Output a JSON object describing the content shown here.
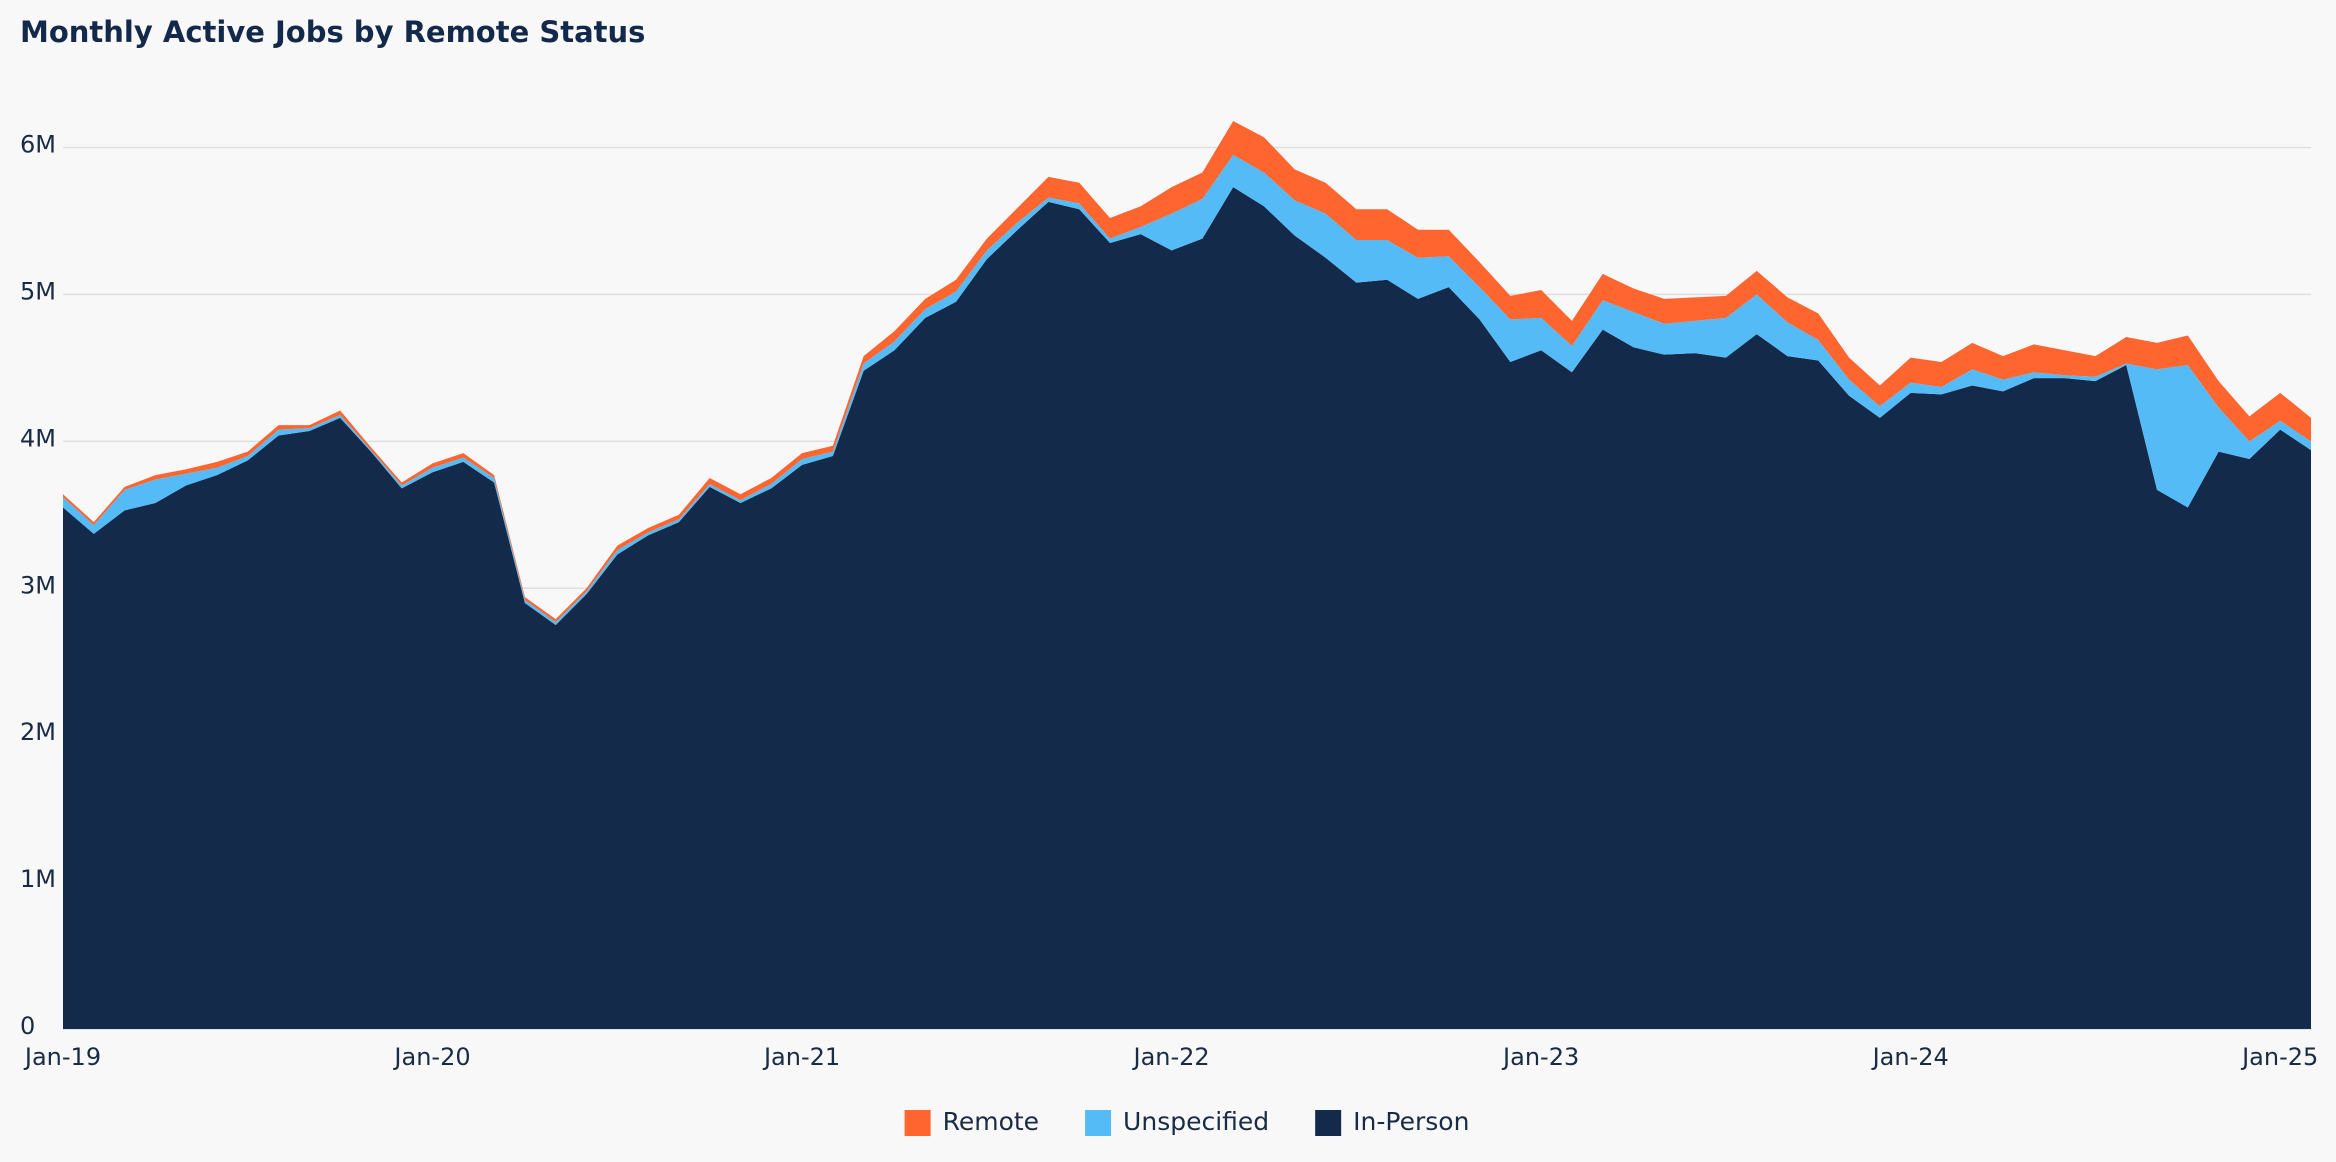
{
  "chart_data": {
    "type": "stacked_area",
    "title": "Monthly Active Jobs by Remote Status",
    "categories": [
      "Jan-19",
      null,
      null,
      null,
      null,
      null,
      null,
      null,
      null,
      null,
      null,
      null,
      "Jan-20",
      null,
      null,
      null,
      null,
      null,
      null,
      null,
      null,
      null,
      null,
      null,
      "Jan-21",
      null,
      null,
      null,
      null,
      null,
      null,
      null,
      null,
      null,
      null,
      null,
      "Jan-22",
      null,
      null,
      null,
      null,
      null,
      null,
      null,
      null,
      null,
      null,
      null,
      "Jan-23",
      null,
      null,
      null,
      null,
      null,
      null,
      null,
      null,
      null,
      null,
      null,
      "Jan-24",
      null,
      null,
      null,
      null,
      null,
      null,
      null,
      null,
      null,
      null,
      null,
      "Jan-25",
      null
    ],
    "series": [
      {
        "name": "In-Person",
        "color": "#132a4a",
        "values": [
          3.55,
          3.37,
          3.53,
          3.58,
          3.7,
          3.77,
          3.87,
          4.04,
          4.07,
          4.16,
          3.93,
          3.68,
          3.79,
          3.86,
          3.72,
          2.9,
          2.75,
          2.96,
          3.23,
          3.36,
          3.45,
          3.69,
          3.58,
          3.68,
          3.84,
          3.9,
          4.48,
          4.62,
          4.84,
          4.95,
          5.24,
          5.44,
          5.63,
          5.58,
          5.35,
          5.41,
          5.3,
          5.38,
          5.73,
          5.6,
          5.4,
          5.25,
          5.08,
          5.1,
          4.97,
          5.05,
          4.83,
          4.54,
          4.62,
          4.47,
          4.76,
          4.64,
          4.59,
          4.6,
          4.57,
          4.73,
          4.58,
          4.55,
          4.31,
          4.16,
          4.33,
          4.32,
          4.38,
          4.34,
          4.43,
          4.43,
          4.41,
          4.52,
          3.67,
          3.55,
          3.93,
          3.88,
          4.08,
          3.94
        ]
      },
      {
        "name": "Unspecified",
        "color": "#55bbf7",
        "values": [
          0.07,
          0.06,
          0.14,
          0.16,
          0.08,
          0.05,
          0.03,
          0.04,
          0.02,
          0.02,
          0.01,
          0.02,
          0.03,
          0.03,
          0.03,
          0.02,
          0.02,
          0.02,
          0.03,
          0.02,
          0.02,
          0.02,
          0.02,
          0.03,
          0.04,
          0.03,
          0.05,
          0.06,
          0.06,
          0.07,
          0.06,
          0.05,
          0.03,
          0.04,
          0.03,
          0.05,
          0.25,
          0.27,
          0.22,
          0.23,
          0.24,
          0.3,
          0.29,
          0.27,
          0.28,
          0.21,
          0.22,
          0.29,
          0.22,
          0.18,
          0.2,
          0.24,
          0.21,
          0.22,
          0.27,
          0.27,
          0.23,
          0.14,
          0.11,
          0.08,
          0.07,
          0.05,
          0.11,
          0.08,
          0.04,
          0.02,
          0.03,
          0.01,
          0.82,
          0.97,
          0.3,
          0.12,
          0.06,
          0.06
        ]
      },
      {
        "name": "Remote",
        "color": "#ff652f",
        "values": [
          0.02,
          0.02,
          0.02,
          0.03,
          0.03,
          0.04,
          0.03,
          0.03,
          0.02,
          0.03,
          0.02,
          0.02,
          0.03,
          0.03,
          0.02,
          0.02,
          0.02,
          0.02,
          0.03,
          0.03,
          0.03,
          0.04,
          0.04,
          0.04,
          0.04,
          0.04,
          0.05,
          0.07,
          0.07,
          0.08,
          0.08,
          0.1,
          0.14,
          0.14,
          0.14,
          0.14,
          0.18,
          0.18,
          0.23,
          0.24,
          0.21,
          0.21,
          0.21,
          0.21,
          0.19,
          0.18,
          0.17,
          0.16,
          0.19,
          0.17,
          0.18,
          0.16,
          0.17,
          0.16,
          0.15,
          0.16,
          0.17,
          0.18,
          0.15,
          0.14,
          0.17,
          0.17,
          0.18,
          0.16,
          0.19,
          0.17,
          0.14,
          0.18,
          0.18,
          0.2,
          0.18,
          0.17,
          0.19,
          0.16
        ]
      }
    ],
    "ylim": [
      0,
      6
    ],
    "yticks": [
      {
        "value": 0,
        "label": "0"
      },
      {
        "value": 1,
        "label": "1M"
      },
      {
        "value": 2,
        "label": "2M"
      },
      {
        "value": 3,
        "label": "3M"
      },
      {
        "value": 4,
        "label": "4M"
      },
      {
        "value": 5,
        "label": "5M"
      },
      {
        "value": 6,
        "label": "6M"
      }
    ],
    "grid": true,
    "legend": "bottom"
  }
}
